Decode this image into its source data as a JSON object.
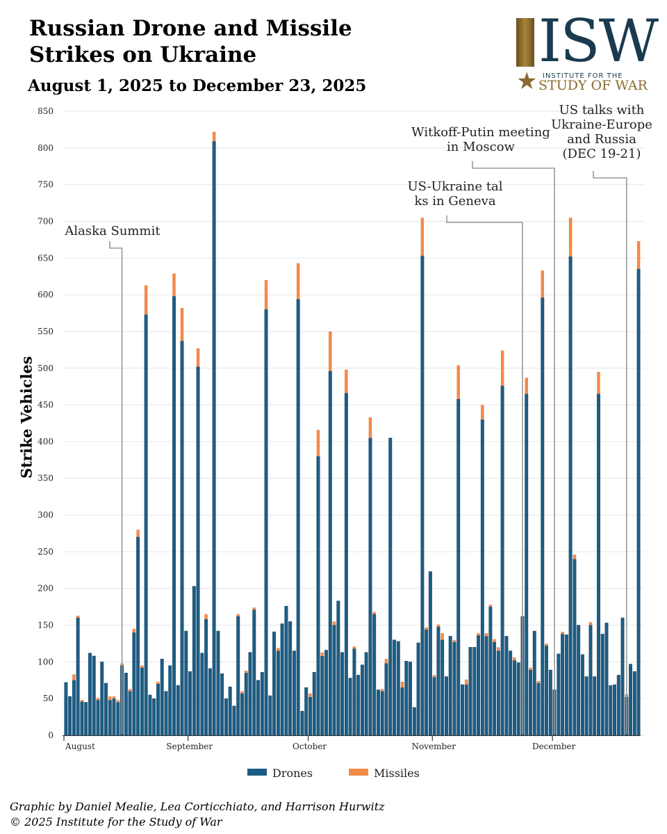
{
  "header": {
    "title": "Russian Drone and Missile Strikes on Ukraine",
    "subtitle": "August 1, 2025 to December 23, 2025"
  },
  "logo": {
    "letters": "ISW",
    "line1": "INSTITUTE FOR THE",
    "line2": "STUDY OF WAR",
    "colors": {
      "navy": "#1a3a4f",
      "gold": "#8a6a2e"
    }
  },
  "chart_data": {
    "type": "bar",
    "stacked": true,
    "ylabel": "Strike Vehicles",
    "ylim": [
      0,
      850
    ],
    "yticks": [
      0,
      50,
      100,
      150,
      200,
      250,
      300,
      350,
      400,
      450,
      500,
      550,
      600,
      650,
      700,
      750,
      800,
      850
    ],
    "grid": true,
    "legend_placement": "bottom-center",
    "month_ticks": [
      {
        "label": "August",
        "day_index": 0
      },
      {
        "label": "September",
        "day_index": 31
      },
      {
        "label": "October",
        "day_index": 61
      },
      {
        "label": "November",
        "day_index": 92
      },
      {
        "label": "December",
        "day_index": 122
      }
    ],
    "series": [
      {
        "name": "Drones",
        "color": "#1c5d85",
        "values": [
          72,
          53,
          75,
          160,
          46,
          45,
          112,
          108,
          48,
          100,
          71,
          48,
          50,
          45,
          95,
          85,
          60,
          140,
          270,
          92,
          573,
          55,
          50,
          70,
          104,
          60,
          95,
          598,
          68,
          537,
          142,
          87,
          203,
          502,
          112,
          158,
          91,
          809,
          142,
          84,
          50,
          66,
          40,
          162,
          57,
          85,
          113,
          171,
          75,
          86,
          580,
          54,
          141,
          115,
          152,
          176,
          155,
          115,
          594,
          33,
          65,
          52,
          86,
          380,
          108,
          116,
          496,
          150,
          183,
          113,
          466,
          78,
          118,
          82,
          96,
          113,
          405,
          165,
          62,
          60,
          98,
          405,
          130,
          128,
          65,
          101,
          100,
          38,
          126,
          653,
          144,
          223,
          79,
          148,
          130,
          80,
          135,
          127,
          458,
          69,
          69,
          120,
          120,
          136,
          430,
          135,
          175,
          127,
          115,
          476,
          135,
          115,
          102,
          99,
          162,
          465,
          89,
          142,
          71,
          596,
          122,
          89,
          62,
          111,
          138,
          137,
          652,
          240,
          150,
          110,
          80,
          150,
          80,
          465,
          138,
          153,
          68,
          69,
          82,
          160,
          52,
          97,
          87,
          635
        ],
        "x_dates_note": ""
      },
      {
        "name": "Missiles",
        "color": "#f28a4a",
        "values": [
          0,
          0,
          8,
          3,
          2,
          0,
          0,
          0,
          3,
          0,
          0,
          5,
          3,
          3,
          3,
          0,
          3,
          5,
          10,
          3,
          40,
          0,
          0,
          3,
          0,
          0,
          0,
          31,
          0,
          45,
          0,
          0,
          0,
          25,
          0,
          7,
          0,
          13,
          0,
          0,
          0,
          0,
          0,
          3,
          3,
          3,
          0,
          3,
          0,
          0,
          40,
          0,
          0,
          4,
          0,
          0,
          0,
          0,
          49,
          0,
          0,
          5,
          0,
          36,
          5,
          0,
          54,
          5,
          0,
          0,
          32,
          0,
          3,
          0,
          0,
          0,
          28,
          3,
          0,
          3,
          6,
          0,
          0,
          0,
          8,
          0,
          0,
          0,
          0,
          52,
          3,
          0,
          3,
          3,
          9,
          0,
          0,
          3,
          46,
          0,
          7,
          0,
          0,
          3,
          20,
          4,
          3,
          4,
          5,
          48,
          0,
          0,
          4,
          0,
          0,
          22,
          3,
          0,
          3,
          37,
          3,
          0,
          0,
          0,
          3,
          0,
          53,
          6,
          0,
          0,
          0,
          4,
          0,
          30,
          0,
          0,
          0,
          0,
          0,
          0,
          4,
          0,
          0,
          38
        ]
      }
    ],
    "annotations": [
      {
        "text": "Alaska Summit",
        "day_index": 14
      },
      {
        "text": "US-Ukraine talks in Geneva",
        "day_index": 114
      },
      {
        "text": "Witkoff-Putin meeting in Moscow",
        "day_index": 122
      },
      {
        "text": "US talks with Ukraine-Europe and Russia (DEC 19-21)",
        "day_index": 140
      }
    ]
  },
  "legend": {
    "drones": "Drones",
    "missiles": "Missiles"
  },
  "credits": {
    "line1": "Graphic by Daniel Mealie, Lea Corticchiato, and Harrison Hurwitz",
    "line2": "© 2025 Institute for the Study of War"
  }
}
